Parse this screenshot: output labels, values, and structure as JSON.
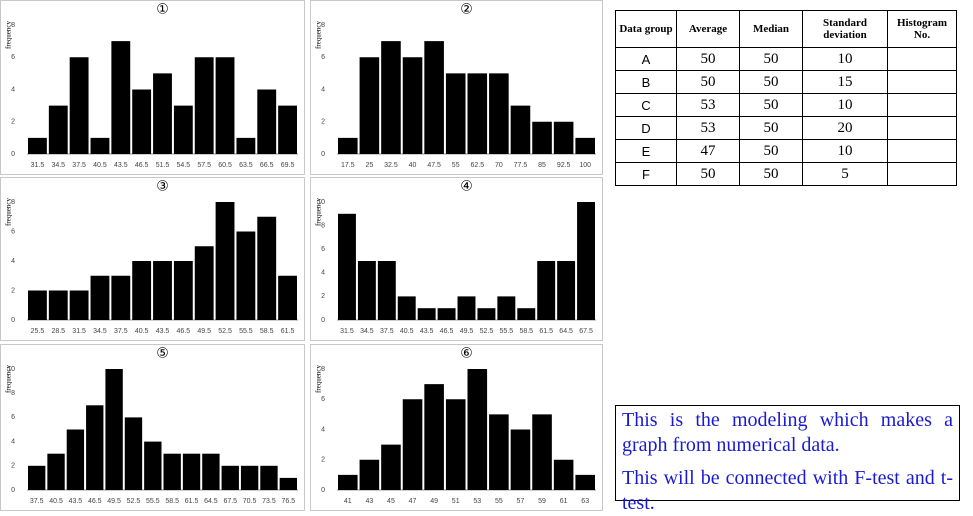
{
  "chart_data": [
    {
      "type": "bar",
      "title": "①",
      "y_label": "frequency",
      "color": "#000000",
      "categories": [
        "31.5",
        "34.5",
        "37.5",
        "40.5",
        "43.5",
        "46.5",
        "51.5",
        "54.5",
        "57.5",
        "60.5",
        "63.5",
        "66.5",
        "69.5"
      ],
      "values": [
        1,
        3,
        6,
        1,
        7,
        4,
        5,
        3,
        6,
        6,
        1,
        4,
        3
      ],
      "ylim": [
        0,
        8
      ],
      "yticks": [
        0,
        2,
        4,
        6,
        8
      ]
    },
    {
      "type": "bar",
      "title": "②",
      "y_label": "frequency",
      "color": "#000000",
      "categories": [
        "17.5",
        "25",
        "32.5",
        "40",
        "47.5",
        "55",
        "62.5",
        "70",
        "77.5",
        "85",
        "92.5",
        "100"
      ],
      "values": [
        1,
        6,
        7,
        6,
        7,
        5,
        5,
        5,
        3,
        2,
        2,
        1
      ],
      "ylim": [
        0,
        8
      ],
      "yticks": [
        0,
        2,
        4,
        6,
        8
      ]
    },
    {
      "type": "bar",
      "title": "③",
      "y_label": "frequency",
      "color": "#000000",
      "categories": [
        "25.5",
        "28.5",
        "31.5",
        "34.5",
        "37.5",
        "40.5",
        "43.5",
        "46.5",
        "49.5",
        "52.5",
        "55.5",
        "58.5",
        "61.5"
      ],
      "values": [
        2,
        2,
        2,
        3,
        3,
        4,
        4,
        4,
        5,
        8,
        6,
        7,
        3
      ],
      "ylim": [
        0,
        8
      ],
      "yticks": [
        0,
        2,
        4,
        6,
        8
      ]
    },
    {
      "type": "bar",
      "title": "④",
      "y_label": "frequency",
      "color": "#000000",
      "categories": [
        "31.5",
        "34.5",
        "37.5",
        "40.5",
        "43.5",
        "46.5",
        "49.5",
        "52.5",
        "55.5",
        "58.5",
        "61.5",
        "64.5",
        "67.5"
      ],
      "values": [
        9,
        5,
        5,
        2,
        1,
        1,
        2,
        1,
        2,
        1,
        5,
        5,
        10
      ],
      "ylim": [
        0,
        10
      ],
      "yticks": [
        0,
        2,
        4,
        6,
        8,
        10
      ]
    },
    {
      "type": "bar",
      "title": "⑤",
      "y_label": "frequency",
      "color": "#000000",
      "categories": [
        "37.5",
        "40.5",
        "43.5",
        "46.5",
        "49.5",
        "52.5",
        "55.5",
        "58.5",
        "61.5",
        "64.5",
        "67.5",
        "70.5",
        "73.5",
        "76.5"
      ],
      "values": [
        2,
        3,
        5,
        7,
        10,
        6,
        4,
        3,
        3,
        3,
        2,
        2,
        2,
        1
      ],
      "ylim": [
        0,
        10
      ],
      "yticks": [
        0,
        2,
        4,
        6,
        8,
        10
      ]
    },
    {
      "type": "bar",
      "title": "⑥",
      "y_label": "frequency",
      "color": "#000000",
      "categories": [
        "41",
        "43",
        "45",
        "47",
        "49",
        "51",
        "53",
        "55",
        "57",
        "59",
        "61",
        "63"
      ],
      "values": [
        1,
        2,
        3,
        6,
        7,
        6,
        8,
        5,
        4,
        5,
        2,
        1
      ],
      "ylim": [
        0,
        8
      ],
      "yticks": [
        0,
        2,
        4,
        6,
        8
      ]
    }
  ],
  "table": {
    "header": [
      "Data group",
      "Average",
      "Median",
      "Standard deviation",
      "Histogram No."
    ],
    "rows": [
      [
        "A",
        50,
        50,
        10
      ],
      [
        "B",
        50,
        50,
        15
      ],
      [
        "C",
        53,
        50,
        10
      ],
      [
        "D",
        53,
        50,
        20
      ],
      [
        "E",
        47,
        50,
        10
      ],
      [
        "F",
        50,
        50,
        5
      ]
    ]
  },
  "note": {
    "paragraphs": [
      "This is the modeling which makes a graph from numerical data.",
      "This will be connected with F-test and t-test."
    ]
  }
}
